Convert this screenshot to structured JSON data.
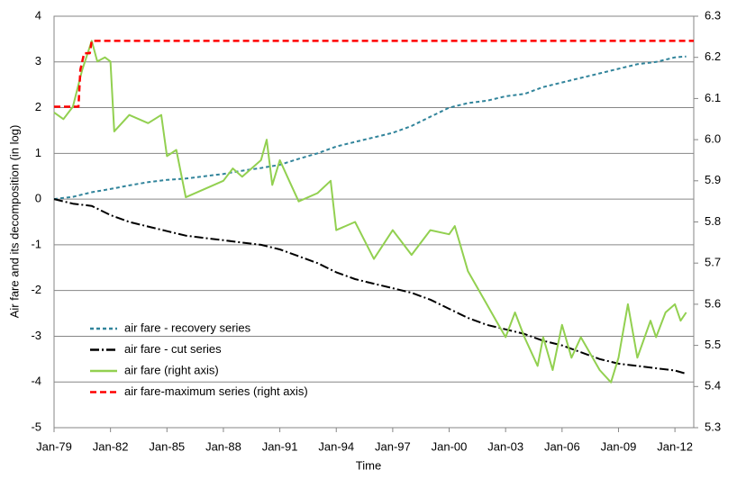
{
  "chart_data": {
    "type": "line",
    "xlabel": "Time",
    "ylabel": "Air fare and its decomposition (in log)",
    "xlim": [
      1979,
      2013
    ],
    "xticks": [
      {
        "value": 1979,
        "label": "Jan-79"
      },
      {
        "value": 1982,
        "label": "Jan-82"
      },
      {
        "value": 1985,
        "label": "Jan-85"
      },
      {
        "value": 1988,
        "label": "Jan-88"
      },
      {
        "value": 1991,
        "label": "Jan-91"
      },
      {
        "value": 1994,
        "label": "Jan-94"
      },
      {
        "value": 1997,
        "label": "Jan-97"
      },
      {
        "value": 2000,
        "label": "Jan-00"
      },
      {
        "value": 2003,
        "label": "Jan-03"
      },
      {
        "value": 2006,
        "label": "Jan-06"
      },
      {
        "value": 2009,
        "label": "Jan-09"
      },
      {
        "value": 2012,
        "label": "Jan-12"
      }
    ],
    "ylim": [
      -5,
      4
    ],
    "yticks": [
      -5,
      -4,
      -3,
      -2,
      -1,
      0,
      1,
      2,
      3,
      4
    ],
    "y2lim": [
      5.3,
      6.3
    ],
    "y2ticks": [
      5.3,
      5.4,
      5.5,
      5.6,
      5.7,
      5.8,
      5.9,
      {
        "value": 6,
        "label": "6.0"
      },
      6.1,
      6.2,
      6.3
    ],
    "grid": true,
    "legend": "lower left",
    "series": [
      {
        "name": "air fare - recovery series",
        "color": "#31849b",
        "dash": "4,3",
        "x": [
          1979,
          1980,
          1981,
          1982,
          1983,
          1984,
          1985,
          1986,
          1987,
          1988,
          1989,
          1990,
          1991,
          1992,
          1993,
          1994,
          1995,
          1996,
          1997,
          1998,
          1999,
          2000,
          2001,
          2002,
          2003,
          2004,
          2005,
          2006,
          2007,
          2008,
          2009,
          2010,
          2011,
          2012,
          2012.6
        ],
        "values": [
          0,
          0.05,
          0.15,
          0.22,
          0.3,
          0.37,
          0.42,
          0.45,
          0.5,
          0.55,
          0.62,
          0.68,
          0.75,
          0.88,
          1.0,
          1.15,
          1.25,
          1.35,
          1.45,
          1.6,
          1.8,
          2.0,
          2.1,
          2.15,
          2.25,
          2.3,
          2.45,
          2.55,
          2.65,
          2.75,
          2.85,
          2.95,
          3.0,
          3.1,
          3.12
        ]
      },
      {
        "name": "air fare - cut series",
        "color": "#000000",
        "dash": "10,3,2,3",
        "x": [
          1979,
          1980,
          1981,
          1982,
          1983,
          1984,
          1985,
          1986,
          1987,
          1988,
          1989,
          1990,
          1991,
          1992,
          1993,
          1994,
          1995,
          1996,
          1997,
          1998,
          1999,
          2000,
          2001,
          2002,
          2003,
          2004,
          2005,
          2006,
          2007,
          2008,
          2009,
          2010,
          2011,
          2012,
          2012.6
        ],
        "values": [
          0,
          -0.1,
          -0.15,
          -0.35,
          -0.5,
          -0.6,
          -0.7,
          -0.8,
          -0.85,
          -0.9,
          -0.95,
          -1.0,
          -1.1,
          -1.25,
          -1.4,
          -1.6,
          -1.75,
          -1.85,
          -1.95,
          -2.05,
          -2.2,
          -2.4,
          -2.6,
          -2.75,
          -2.85,
          -2.95,
          -3.1,
          -3.2,
          -3.35,
          -3.5,
          -3.6,
          -3.65,
          -3.7,
          -3.75,
          -3.82
        ]
      },
      {
        "name": "air fare (right axis)",
        "color": "#92d050",
        "dash": "",
        "axis": "y2",
        "x": [
          1979,
          1979.5,
          1980,
          1980.5,
          1981,
          1981.3,
          1981.7,
          1982,
          1982.2,
          1983,
          1984,
          1984.7,
          1985,
          1985.5,
          1986,
          1987,
          1988,
          1988.5,
          1989,
          1990,
          1990.3,
          1990.6,
          1991,
          1991.5,
          1992,
          1993,
          1993.7,
          1994,
          1995,
          1996,
          1997,
          1998,
          1999,
          2000,
          2000.3,
          2001,
          2002,
          2002.5,
          2003,
          2003.5,
          2004,
          2004.7,
          2005,
          2005.5,
          2006,
          2006.5,
          2007,
          2008,
          2008.6,
          2009,
          2009.5,
          2010,
          2010.7,
          2011,
          2011.5,
          2012,
          2012.3,
          2012.6
        ],
        "values": [
          6.066,
          6.05,
          6.08,
          6.17,
          6.24,
          6.19,
          6.2,
          6.19,
          6.02,
          6.06,
          6.04,
          6.06,
          5.96,
          5.975,
          5.86,
          5.88,
          5.9,
          5.93,
          5.91,
          5.95,
          6.0,
          5.89,
          5.95,
          5.9,
          5.85,
          5.87,
          5.9,
          5.78,
          5.8,
          5.71,
          5.78,
          5.72,
          5.78,
          5.77,
          5.79,
          5.68,
          5.6,
          5.56,
          5.52,
          5.58,
          5.52,
          5.45,
          5.52,
          5.44,
          5.55,
          5.47,
          5.52,
          5.44,
          5.41,
          5.47,
          5.6,
          5.47,
          5.56,
          5.52,
          5.58,
          5.6,
          5.56,
          5.58
        ]
      },
      {
        "name": "air fare-maximum series (right axis)",
        "color": "#ff0000",
        "dash": "7,4",
        "axis": "y2",
        "x": [
          1979,
          1980.3,
          1980.4,
          1980.6,
          1980.9,
          1981,
          2013
        ],
        "values": [
          6.08,
          6.08,
          6.17,
          6.21,
          6.21,
          6.24,
          6.24
        ]
      }
    ]
  }
}
